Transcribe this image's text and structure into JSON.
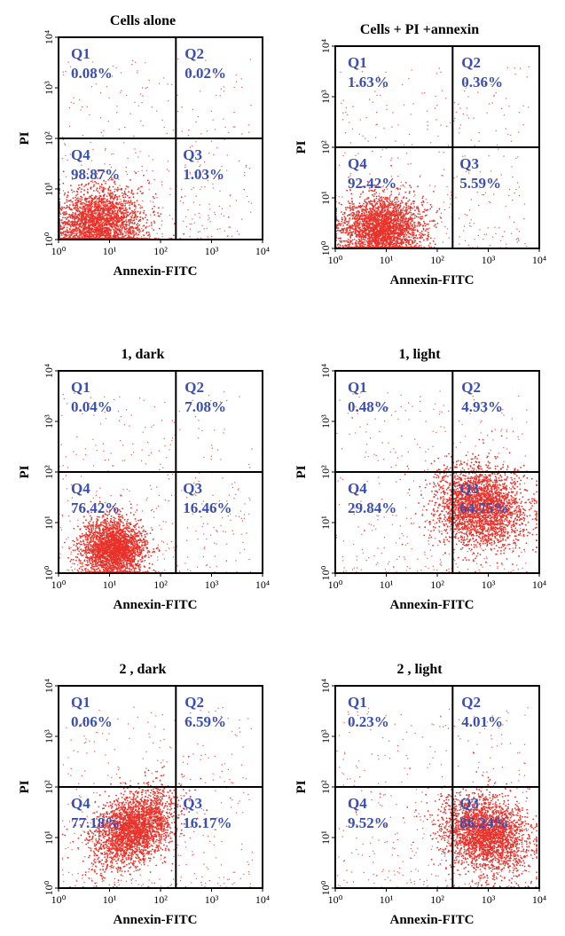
{
  "chart_data": [
    {
      "type": "scatter",
      "title": "Cells alone",
      "xlabel": "Annexin-FITC",
      "ylabel": "PI",
      "xscale": "log",
      "yscale": "log",
      "xlim": [
        1,
        10000
      ],
      "ylim": [
        1,
        10000
      ],
      "xticks": [
        "10⁰",
        "10¹",
        "10²",
        "10³",
        "10⁴"
      ],
      "yticks": [
        "10⁰",
        "10¹",
        "10²",
        "10³",
        "10⁴"
      ],
      "gate": {
        "x": 200,
        "y": 100
      },
      "quadrants": [
        {
          "name": "Q1",
          "value": "0.08%"
        },
        {
          "name": "Q2",
          "value": "0.02%"
        },
        {
          "name": "Q3",
          "value": "1.03%"
        },
        {
          "name": "Q4",
          "value": "98.87%"
        }
      ],
      "population": {
        "center": [
          6,
          2
        ],
        "spread": [
          0.45,
          0.35
        ],
        "angle": 10
      },
      "color": "#e8322a"
    },
    {
      "type": "scatter",
      "title": "Cells + PI +annexin",
      "xlabel": "Annexin-FITC",
      "ylabel": "PI",
      "xscale": "log",
      "yscale": "log",
      "xlim": [
        1,
        10000
      ],
      "ylim": [
        1,
        10000
      ],
      "xticks": [
        "10⁰",
        "10¹",
        "10²",
        "10³",
        "10⁴"
      ],
      "yticks": [
        "10⁰",
        "10¹",
        "10²",
        "10³",
        "10⁴"
      ],
      "gate": {
        "x": 200,
        "y": 100
      },
      "quadrants": [
        {
          "name": "Q1",
          "value": "1.63%"
        },
        {
          "name": "Q2",
          "value": "0.36%"
        },
        {
          "name": "Q3",
          "value": "5.59%"
        },
        {
          "name": "Q4",
          "value": "92.42%"
        }
      ],
      "population": {
        "center": [
          8,
          2.5
        ],
        "spread": [
          0.4,
          0.3
        ],
        "angle": 5
      },
      "color": "#e8322a"
    },
    {
      "type": "scatter",
      "title": "1, dark",
      "xlabel": "Annexin-FITC",
      "ylabel": "PI",
      "xscale": "log",
      "yscale": "log",
      "xlim": [
        1,
        10000
      ],
      "ylim": [
        1,
        10000
      ],
      "xticks": [
        "10⁰",
        "10¹",
        "10²",
        "10³",
        "10⁴"
      ],
      "yticks": [
        "10⁰",
        "10¹",
        "10²",
        "10³",
        "10⁴"
      ],
      "gate": {
        "x": 200,
        "y": 100
      },
      "quadrants": [
        {
          "name": "Q1",
          "value": "0.04%"
        },
        {
          "name": "Q2",
          "value": "7.08%"
        },
        {
          "name": "Q3",
          "value": "16.46%"
        },
        {
          "name": "Q4",
          "value": "76.42%"
        }
      ],
      "population": {
        "center": [
          12,
          3
        ],
        "spread": [
          0.3,
          0.3
        ],
        "angle": 15
      },
      "color": "#e8322a"
    },
    {
      "type": "scatter",
      "title": "1, light",
      "xlabel": "Annexin-FITC",
      "ylabel": "PI",
      "xscale": "log",
      "yscale": "log",
      "xlim": [
        1,
        10000
      ],
      "ylim": [
        1,
        10000
      ],
      "xticks": [
        "10⁰",
        "10¹",
        "10²",
        "10³",
        "10⁴"
      ],
      "yticks": [
        "10⁰",
        "10¹",
        "10²",
        "10³",
        "10⁴"
      ],
      "gate": {
        "x": 200,
        "y": 100
      },
      "quadrants": [
        {
          "name": "Q1",
          "value": "0.48%"
        },
        {
          "name": "Q2",
          "value": "4.93%"
        },
        {
          "name": "Q3",
          "value": "64.75%"
        },
        {
          "name": "Q4",
          "value": "29.84%"
        }
      ],
      "population": {
        "center": [
          700,
          20
        ],
        "spread": [
          0.45,
          0.4
        ],
        "angle": -20
      },
      "color": "#e8322a"
    },
    {
      "type": "scatter",
      "title": "2 , dark",
      "xlabel": "Annexin-FITC",
      "ylabel": "PI",
      "xscale": "log",
      "yscale": "log",
      "xlim": [
        1,
        10000
      ],
      "ylim": [
        1,
        10000
      ],
      "xticks": [
        "10⁰",
        "10¹",
        "10²",
        "10³",
        "10⁴"
      ],
      "yticks": [
        "10⁰",
        "10¹",
        "10²",
        "10³",
        "10⁴"
      ],
      "gate": {
        "x": 200,
        "y": 100
      },
      "quadrants": [
        {
          "name": "Q1",
          "value": "0.06%"
        },
        {
          "name": "Q2",
          "value": "6.59%"
        },
        {
          "name": "Q3",
          "value": "16.17%"
        },
        {
          "name": "Q4",
          "value": "77.18%"
        }
      ],
      "population": {
        "center": [
          30,
          15
        ],
        "spread": [
          0.45,
          0.3
        ],
        "angle": 40
      },
      "color": "#e8322a"
    },
    {
      "type": "scatter",
      "title": "2 , light",
      "xlabel": "Annexin-FITC",
      "ylabel": "PI",
      "xscale": "log",
      "yscale": "log",
      "xlim": [
        1,
        10000
      ],
      "ylim": [
        1,
        10000
      ],
      "xticks": [
        "10⁰",
        "10¹",
        "10²",
        "10³",
        "10⁴"
      ],
      "yticks": [
        "10⁰",
        "10¹",
        "10²",
        "10³",
        "10⁴"
      ],
      "gate": {
        "x": 200,
        "y": 100
      },
      "quadrants": [
        {
          "name": "Q1",
          "value": "0.23%"
        },
        {
          "name": "Q2",
          "value": "4.01%"
        },
        {
          "name": "Q3",
          "value": "86.24%"
        },
        {
          "name": "Q4",
          "value": "9.52%"
        }
      ],
      "population": {
        "center": [
          900,
          12
        ],
        "spread": [
          0.45,
          0.35
        ],
        "angle": -30
      },
      "color": "#e8322a"
    }
  ]
}
